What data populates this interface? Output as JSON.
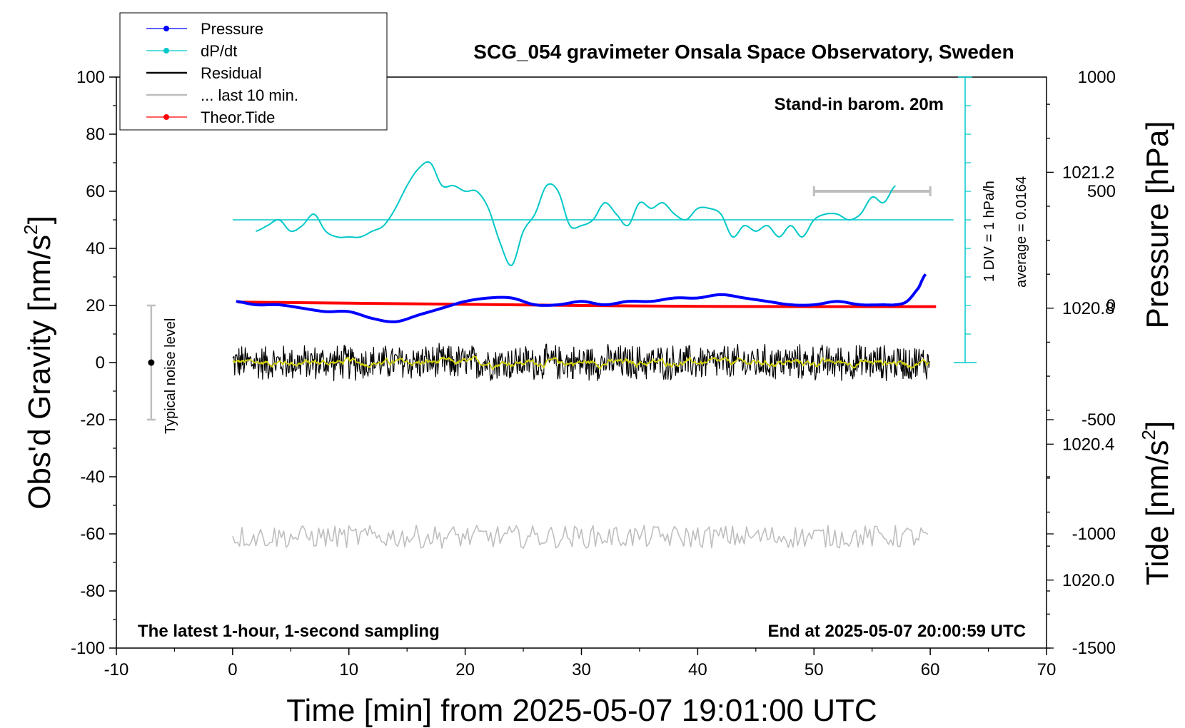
{
  "chart_data": {
    "type": "line",
    "title": "SCG_054 gravimeter Onsala Space Observatory, Sweden",
    "xlabel": "Time [min] from 2025-05-07 19:01:00 UTC",
    "ylabel_left_main": "Obs'd Gravity [nm/s",
    "ylabel_left_sup": "2",
    "ylabel_left_end": "]",
    "ylabel_right_pressure": "Pressure [hPa]",
    "ylabel_right_tide_main": "Tide [nm/s",
    "ylabel_right_tide_sup": "2",
    "ylabel_right_tide_end": "]",
    "xlim": [
      -10,
      70
    ],
    "ylim": [
      -100,
      100
    ],
    "pressure_lim": [
      1019.8,
      1021.48
    ],
    "tide_lim": [
      -1500,
      1000
    ],
    "xticks": [
      "-10",
      "0",
      "10",
      "20",
      "30",
      "40",
      "50",
      "60",
      "70"
    ],
    "xtick_values": [
      -10,
      0,
      10,
      20,
      30,
      40,
      50,
      60,
      70
    ],
    "yticks": [
      "100",
      "80",
      "60",
      "40",
      "20",
      "0",
      "-20",
      "-40",
      "-60",
      "-80",
      "-100"
    ],
    "ytick_values": [
      100,
      80,
      60,
      40,
      20,
      0,
      -20,
      -40,
      -60,
      -80,
      -100
    ],
    "pressure_ticks": [
      "1021.2",
      "1020.8",
      "1020.4",
      "1020.0"
    ],
    "pressure_tick_values": [
      1021.2,
      1020.8,
      1020.4,
      1020.0
    ],
    "tide_ticks": [
      "1000",
      "500",
      "0",
      "-500",
      "-1000",
      "-1500"
    ],
    "tide_tick_values": [
      1000,
      500,
      0,
      -500,
      -1000,
      -1500
    ],
    "legend": [
      {
        "label": "Pressure",
        "color": "#0000ff",
        "marker": true
      },
      {
        "label": "dP/dt",
        "color": "#00c8c8",
        "marker": true
      },
      {
        "label": "Residual",
        "color": "#000000",
        "marker": false
      },
      {
        "label": "... last 10 min.",
        "color": "#bebebe",
        "marker": false
      },
      {
        "label": "Theor.Tide",
        "color": "#ff0000",
        "marker": true
      }
    ],
    "annotations": {
      "stand_in": "Stand-in barom. 20m",
      "latest": "The latest 1-hour, 1-second sampling",
      "end": "End at 2025-05-07 20:00:59 UTC",
      "noise": "Typical noise level",
      "div": "1 DIV = 1 hPa/h",
      "average": "average = 0.0164"
    },
    "colors": {
      "pressure": "#0000ff",
      "dpdt": "#00c8c8",
      "residual": "#000000",
      "smoothed": "#d2d200",
      "last10": "#bebebe",
      "tide": "#ff0000",
      "noise": "#bebebe"
    },
    "series": {
      "pressure": {
        "x": [
          0.3,
          2,
          4,
          6,
          8,
          10,
          12,
          14,
          16,
          18,
          20,
          22,
          24,
          26,
          28,
          30,
          32,
          34,
          36,
          38,
          40,
          42,
          44,
          46,
          48,
          50,
          52,
          54,
          56,
          57,
          58,
          59,
          59.6
        ],
        "y": [
          1020.82,
          1020.81,
          1020.81,
          1020.8,
          1020.79,
          1020.79,
          1020.77,
          1020.76,
          1020.78,
          1020.8,
          1020.82,
          1020.83,
          1020.83,
          1020.81,
          1020.81,
          1020.82,
          1020.81,
          1020.82,
          1020.82,
          1020.83,
          1020.83,
          1020.84,
          1020.83,
          1020.82,
          1020.81,
          1020.81,
          1020.82,
          1020.81,
          1020.81,
          1020.81,
          1020.82,
          1020.86,
          1020.9
        ]
      },
      "dpdt": {
        "x": [
          2,
          3,
          4,
          5,
          6,
          7,
          8,
          9,
          10,
          11,
          12,
          13,
          14,
          15,
          16,
          17,
          18,
          19,
          20,
          21,
          22,
          23,
          24,
          25,
          26,
          27,
          28,
          29,
          30,
          31,
          32,
          33,
          34,
          35,
          36,
          37,
          38,
          39,
          40,
          41,
          42,
          43,
          44,
          45,
          46,
          47,
          48,
          49,
          50,
          51,
          52,
          53,
          54,
          55,
          56,
          57
        ],
        "y": [
          -0.1,
          -0.05,
          0,
          -0.1,
          -0.05,
          0.05,
          -0.1,
          -0.15,
          -0.15,
          -0.15,
          -0.1,
          -0.05,
          0.1,
          0.3,
          0.45,
          0.5,
          0.3,
          0.3,
          0.25,
          0.25,
          0.1,
          -0.2,
          -0.4,
          -0.1,
          0.05,
          0.3,
          0.25,
          -0.05,
          -0.05,
          0,
          0.15,
          0.05,
          -0.05,
          0.15,
          0.1,
          0.15,
          0.05,
          0,
          0.1,
          0.1,
          0.05,
          -0.15,
          -0.05,
          -0.1,
          -0.05,
          -0.15,
          -0.05,
          -0.15,
          0,
          0.05,
          0.05,
          0,
          0.05,
          0.2,
          0.15,
          0.3
        ]
      },
      "dpdt_reference": 0.0164,
      "tide": {
        "x": [
          0.5,
          10,
          20,
          30,
          40,
          50,
          60.5
        ],
        "y": [
          15,
          10,
          5,
          0,
          -4,
          -5,
          -5
        ]
      },
      "residual": {
        "x_start": 0,
        "x_end": 60,
        "level": 0,
        "amplitude": 7
      },
      "last10": {
        "x_start": 0,
        "x_end": 60,
        "level": -61,
        "amplitude": 4
      },
      "last10_bar": {
        "x": [
          50,
          60
        ],
        "tide_level": 500
      },
      "noise_bar": {
        "x": -7,
        "y": [
          -20,
          20
        ]
      }
    }
  }
}
